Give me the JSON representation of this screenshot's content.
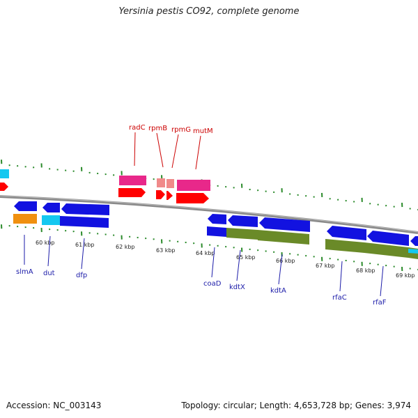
{
  "title": "Yersinia pestis CO92, complete genome",
  "footer": {
    "accession": "Accession: NC_003143",
    "stats": "Topology: circular; Length: 4,653,728 bp; Genes: 3,974"
  },
  "colors": {
    "backbone": "#8a8a8a",
    "tick": "#2a8a2a",
    "red_label": "#cc0000",
    "blue_label": "#1a1aa8",
    "red_gene": "#ff0000",
    "pink_gene": "#e8288a",
    "light_pink_gene": "#f08a8a",
    "blue_gene": "#1212e0",
    "cyan_gene": "#14c8f0",
    "orange_gene": "#f09010",
    "olive_gene": "#6a8a28"
  },
  "ticks": [
    "60 kbp",
    "61 kbp",
    "62 kbp",
    "63 kbp",
    "64 kbp",
    "65 kbp",
    "66 kbp",
    "67 kbp",
    "68 kbp",
    "69 kbp"
  ],
  "genes_top": [
    "radC",
    "rpmB",
    "rpmG",
    "mutM"
  ],
  "genes_bottom": [
    "slmA",
    "dut",
    "dfp",
    "coaD",
    "kdtX",
    "kdtA",
    "rfaC",
    "rfaF"
  ]
}
